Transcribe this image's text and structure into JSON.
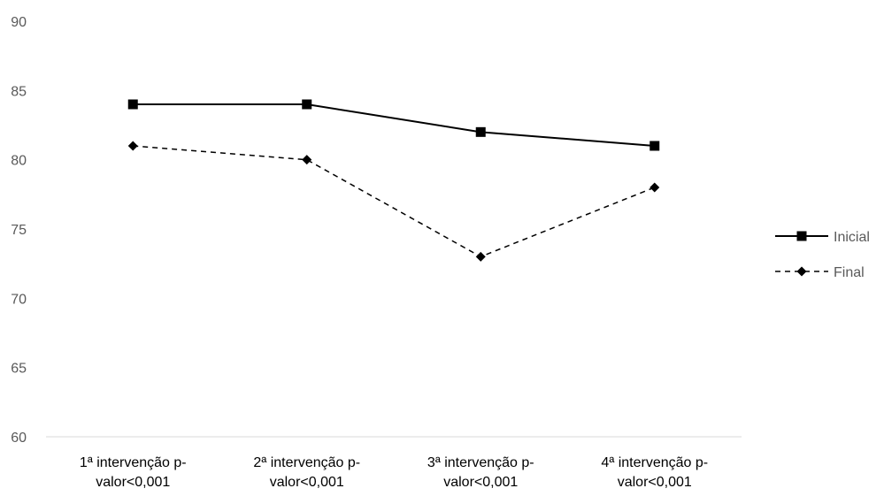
{
  "chart_data": {
    "type": "line",
    "title": "",
    "xlabel": "",
    "ylabel": "",
    "ylim": [
      60,
      90
    ],
    "yticks": [
      60,
      65,
      70,
      75,
      80,
      85,
      90
    ],
    "grid": false,
    "legend_position": "right",
    "categories": [
      [
        "1ª intervenção  p-",
        "valor<0,001"
      ],
      [
        "2ª intervenção  p-",
        "valor<0,001"
      ],
      [
        "3ª intervenção  p-",
        "valor<0,001"
      ],
      [
        "4ª intervenção  p-",
        "valor<0,001"
      ]
    ],
    "series": [
      {
        "name": "Inicial",
        "values": [
          84,
          84,
          82,
          81
        ],
        "line_style": "solid",
        "marker": "square",
        "color": "#000000"
      },
      {
        "name": "Final",
        "values": [
          81,
          80,
          73,
          78
        ],
        "line_style": "dashed",
        "marker": "diamond",
        "color": "#000000"
      }
    ]
  }
}
